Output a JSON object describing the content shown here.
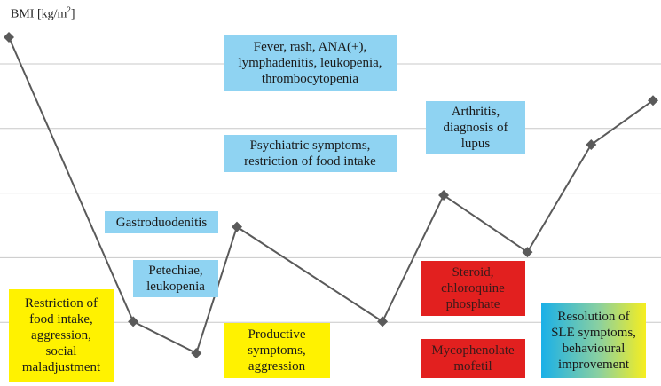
{
  "chart_data": {
    "type": "line",
    "title": "",
    "ylabel": "BMI [kg/m²]",
    "xlabel": "",
    "ylabel_parts": {
      "base": "BMI [kg/m",
      "sup": "2",
      "close": "]"
    },
    "grid": true,
    "gridlines": 6,
    "points": [
      {
        "x": 0,
        "y": 5.5
      },
      {
        "x": 1,
        "y": 1.0
      },
      {
        "x": 2,
        "y": 0.5
      },
      {
        "x": 3,
        "y": 2.5
      },
      {
        "x": 4,
        "y": 1.0
      },
      {
        "x": 5,
        "y": 3.0
      },
      {
        "x": 6,
        "y": 2.1
      },
      {
        "x": 7,
        "y": 3.8
      },
      {
        "x": 8,
        "y": 4.5
      }
    ],
    "line_color": "#5a5a5a",
    "marker_color": "#5a5a5a",
    "annotations": [
      {
        "id": "anno-fever",
        "text": "Fever, rash, ANA(+),\nlymphadenitis, leukopenia,\nthrombocytopenia",
        "style": "blue"
      },
      {
        "id": "anno-arthritis",
        "text": "Arthritis,\ndiagnosis of\nlupus",
        "style": "blue"
      },
      {
        "id": "anno-psychiatric",
        "text": "Psychiatric symptoms,\nrestriction of food intake",
        "style": "blue"
      },
      {
        "id": "anno-gastro",
        "text": "Gastroduodenitis",
        "style": "blue"
      },
      {
        "id": "anno-petechiae",
        "text": "Petechiae,\nleukopenia",
        "style": "blue"
      },
      {
        "id": "anno-restriction",
        "text": "Restriction of\nfood intake,\naggression,\nsocial\nmaladjustment",
        "style": "yellow"
      },
      {
        "id": "anno-productive",
        "text": "Productive\nsymptoms,\naggression",
        "style": "yellow"
      },
      {
        "id": "anno-steroid",
        "text": "Steroid,\nchloroquine\nphosphate",
        "style": "red"
      },
      {
        "id": "anno-mycophenolate",
        "text": "Mycophenolate\nmofetil",
        "style": "red"
      },
      {
        "id": "anno-resolution",
        "text": "Resolution of\nSLE symptoms,\nbehavioural\nimprovement",
        "style": "gradient"
      }
    ],
    "colors": {
      "blue": "#8fd3f2",
      "yellow": "#fff200",
      "red": "#e2201f",
      "grid": "#c8c8c8"
    }
  }
}
